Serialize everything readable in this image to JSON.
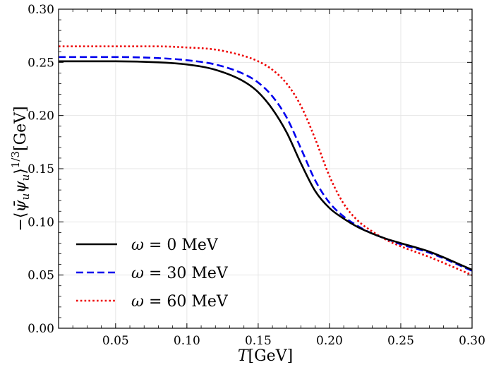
{
  "chart_data": {
    "type": "line",
    "xlabel": {
      "var": "T",
      "unit": "[GeV]"
    },
    "ylabel": {
      "prefix": "−⟨",
      "psibar": "ψ̄",
      "sub1": "u",
      "psi": "ψ",
      "sub2": "u",
      "suffix": "⟩",
      "power": "1/3",
      "unit": "[GeV]"
    },
    "xlim": [
      0.01,
      0.3
    ],
    "ylim": [
      0.0,
      0.3
    ],
    "xticks": [
      0.05,
      0.1,
      0.15,
      0.2,
      0.25,
      0.3
    ],
    "xtick_labels": [
      "0.05",
      "0.10",
      "0.15",
      "0.20",
      "0.25",
      "0.30"
    ],
    "yticks": [
      0.0,
      0.05,
      0.1,
      0.15,
      0.2,
      0.25,
      0.3
    ],
    "ytick_labels": [
      "0.00",
      "0.05",
      "0.10",
      "0.15",
      "0.20",
      "0.25",
      "0.30"
    ],
    "grid": true,
    "legend_position": "lower-left",
    "series": [
      {
        "name": "ω = 0 MeV",
        "label_var": "ω",
        "label_rest": " = 0 MeV",
        "color": "#000000",
        "style": "solid",
        "x": [
          0.01,
          0.05,
          0.08,
          0.1,
          0.12,
          0.14,
          0.15,
          0.16,
          0.17,
          0.18,
          0.19,
          0.2,
          0.21,
          0.22,
          0.23,
          0.24,
          0.25,
          0.27,
          0.3
        ],
        "y": [
          0.251,
          0.251,
          0.25,
          0.248,
          0.243,
          0.232,
          0.222,
          0.206,
          0.184,
          0.155,
          0.129,
          0.113,
          0.103,
          0.095,
          0.089,
          0.084,
          0.08,
          0.072,
          0.055
        ]
      },
      {
        "name": "ω = 30 MeV",
        "label_var": "ω",
        "label_rest": " = 30 MeV",
        "color": "#0000ee",
        "style": "dashed",
        "x": [
          0.01,
          0.05,
          0.08,
          0.1,
          0.12,
          0.14,
          0.15,
          0.16,
          0.17,
          0.18,
          0.19,
          0.2,
          0.21,
          0.22,
          0.23,
          0.24,
          0.25,
          0.27,
          0.3
        ],
        "y": [
          0.255,
          0.255,
          0.254,
          0.252,
          0.248,
          0.239,
          0.231,
          0.218,
          0.198,
          0.169,
          0.139,
          0.118,
          0.105,
          0.096,
          0.089,
          0.084,
          0.079,
          0.071,
          0.054
        ]
      },
      {
        "name": "ω = 60 MeV",
        "label_var": "ω",
        "label_rest": " = 60 MeV",
        "color": "#ee0000",
        "style": "dotted",
        "x": [
          0.01,
          0.05,
          0.08,
          0.1,
          0.12,
          0.14,
          0.15,
          0.16,
          0.17,
          0.18,
          0.19,
          0.2,
          0.21,
          0.22,
          0.23,
          0.24,
          0.25,
          0.27,
          0.3
        ],
        "y": [
          0.265,
          0.265,
          0.265,
          0.264,
          0.262,
          0.256,
          0.251,
          0.243,
          0.23,
          0.209,
          0.178,
          0.143,
          0.117,
          0.101,
          0.091,
          0.083,
          0.077,
          0.067,
          0.05
        ]
      }
    ]
  }
}
